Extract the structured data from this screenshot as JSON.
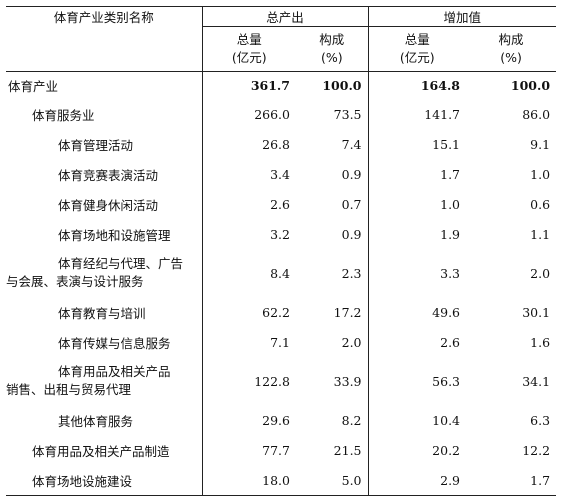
{
  "header": {
    "category_label": "体育产业类别名称",
    "group_output": "总产出",
    "group_added": "增加值",
    "col_total": "总量",
    "col_total_unit": "(亿元)",
    "col_share": "构成",
    "col_share_unit": "(%)"
  },
  "rows": [
    {
      "name": "体育产业",
      "v1": "361.7",
      "v2": "100.0",
      "v3": "164.8",
      "v4": "100.0"
    },
    {
      "name": "体育服务业",
      "v1": "266.0",
      "v2": "73.5",
      "v3": "141.7",
      "v4": "86.0"
    },
    {
      "name": "体育管理活动",
      "v1": "26.8",
      "v2": "7.4",
      "v3": "15.1",
      "v4": "9.1"
    },
    {
      "name": "体育竞赛表演活动",
      "v1": "3.4",
      "v2": "0.9",
      "v3": "1.7",
      "v4": "1.0"
    },
    {
      "name": "体育健身休闲活动",
      "v1": "2.6",
      "v2": "0.7",
      "v3": "1.0",
      "v4": "0.6"
    },
    {
      "name": "体育场地和设施管理",
      "v1": "3.2",
      "v2": "0.9",
      "v3": "1.9",
      "v4": "1.1"
    },
    {
      "name_a": "体育经纪与代理、广告",
      "name_b": "与会展、表演与设计服务",
      "v1": "8.4",
      "v2": "2.3",
      "v3": "3.3",
      "v4": "2.0"
    },
    {
      "name": "体育教育与培训",
      "v1": "62.2",
      "v2": "17.2",
      "v3": "49.6",
      "v4": "30.1"
    },
    {
      "name": "体育传媒与信息服务",
      "v1": "7.1",
      "v2": "2.0",
      "v3": "2.6",
      "v4": "1.6"
    },
    {
      "name_a": "体育用品及相关产品",
      "name_b": "销售、出租与贸易代理",
      "v1": "122.8",
      "v2": "33.9",
      "v3": "56.3",
      "v4": "34.1"
    },
    {
      "name": "其他体育服务",
      "v1": "29.6",
      "v2": "8.2",
      "v3": "10.4",
      "v4": "6.3"
    },
    {
      "name": "体育用品及相关产品制造",
      "v1": "77.7",
      "v2": "21.5",
      "v3": "20.2",
      "v4": "12.2"
    },
    {
      "name": "体育场地设施建设",
      "v1": "18.0",
      "v2": "5.0",
      "v3": "2.9",
      "v4": "1.7"
    }
  ]
}
